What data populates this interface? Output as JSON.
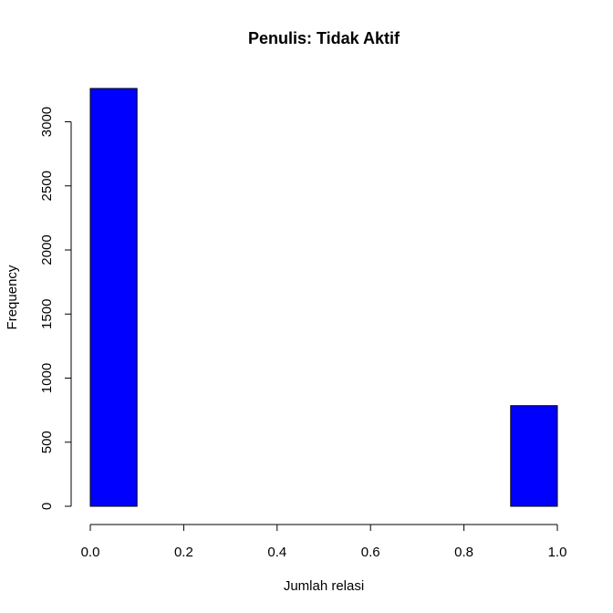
{
  "chart_data": {
    "type": "bar",
    "title": "Penulis: Tidak Aktif",
    "xlabel": "Jumlah relasi",
    "ylabel": "Frequency",
    "bins": [
      {
        "x0": 0.0,
        "x1": 0.1,
        "count": 3260
      },
      {
        "x0": 0.1,
        "x1": 0.2,
        "count": 0
      },
      {
        "x0": 0.2,
        "x1": 0.3,
        "count": 0
      },
      {
        "x0": 0.3,
        "x1": 0.4,
        "count": 0
      },
      {
        "x0": 0.4,
        "x1": 0.5,
        "count": 0
      },
      {
        "x0": 0.5,
        "x1": 0.6,
        "count": 0
      },
      {
        "x0": 0.6,
        "x1": 0.7,
        "count": 0
      },
      {
        "x0": 0.7,
        "x1": 0.8,
        "count": 0
      },
      {
        "x0": 0.8,
        "x1": 0.9,
        "count": 0
      },
      {
        "x0": 0.9,
        "x1": 1.0,
        "count": 785
      }
    ],
    "xticks": [
      "0.0",
      "0.2",
      "0.4",
      "0.6",
      "0.8",
      "1.0"
    ],
    "yticks": [
      "0",
      "500",
      "1000",
      "1500",
      "2000",
      "2500",
      "3000"
    ],
    "xlim": [
      0,
      1
    ],
    "ylim": [
      0,
      3260
    ],
    "bar_color": "#0000ff",
    "grid": false
  }
}
